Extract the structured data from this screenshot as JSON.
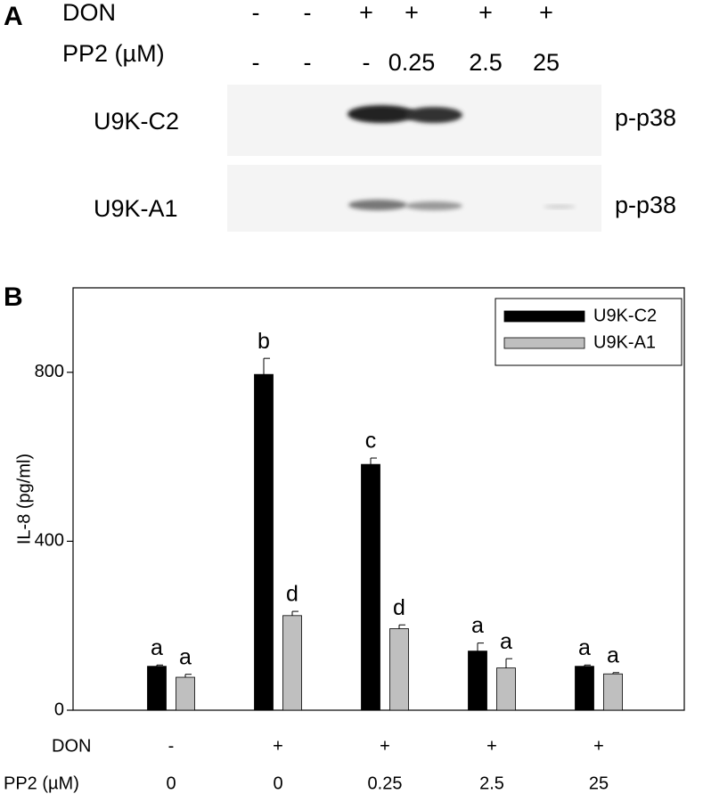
{
  "panel_a": {
    "label": "A",
    "rows": [
      {
        "label": "DON",
        "values": [
          "-",
          "-",
          "+",
          "+",
          "+",
          "+"
        ]
      },
      {
        "label": "PP2 (µM)",
        "values": [
          "-",
          "-",
          "-",
          "0.25",
          "2.5",
          "25"
        ]
      }
    ],
    "blots": [
      {
        "cell_line": "U9K-C2",
        "target": "p-p38"
      },
      {
        "cell_line": "U9K-A1",
        "target": "p-p38"
      }
    ]
  },
  "chart_data": {
    "type": "bar",
    "panel_label": "B",
    "y_label": "IL-8 (pg/ml)",
    "x_row_labels": [
      "DON",
      "PP2 (µM)"
    ],
    "don_signs": [
      "-",
      "+",
      "+",
      "+",
      "+"
    ],
    "categories": [
      "0",
      "0",
      "0.25",
      "2.5",
      "25"
    ],
    "series": [
      {
        "name": "U9K-C2",
        "color": "#000000",
        "values": [
          104,
          795,
          582,
          140,
          104
        ],
        "errors": [
          3,
          38,
          15,
          19,
          3
        ],
        "letters": [
          "a",
          "b",
          "c",
          "a",
          "a"
        ]
      },
      {
        "name": "U9K-A1",
        "color": "#bfbfbf",
        "values": [
          78,
          224,
          193,
          100,
          86
        ],
        "errors": [
          7,
          10,
          9,
          22,
          3
        ],
        "letters": [
          "a",
          "d",
          "d",
          "a",
          "a"
        ]
      }
    ],
    "ylim": [
      0,
      1000
    ],
    "yticks": [
      0,
      400,
      800
    ],
    "legend": "top-right"
  }
}
